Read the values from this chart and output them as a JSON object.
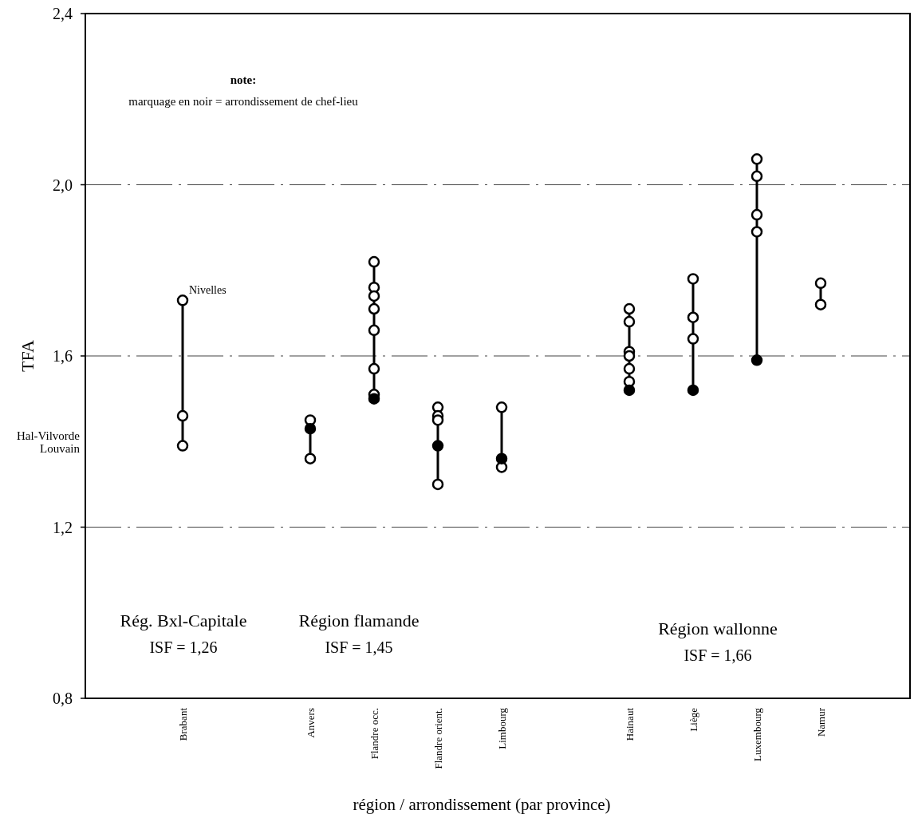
{
  "chart_data": {
    "type": "scatter",
    "xlabel": "région / arrondissement (par province)",
    "ylabel": "TFA",
    "categories": [
      "Brabant",
      null,
      "Anvers",
      "Flandre occ.",
      "Flandre orient.",
      "Limbourg",
      null,
      "Hainaut",
      "Liège",
      "Luxembourg",
      "Namur"
    ],
    "ylim": [
      0.8,
      2.4
    ],
    "yticks": [
      {
        "value": 0.8,
        "label": "0,8"
      },
      {
        "value": 1.2,
        "label": "1,2"
      },
      {
        "value": 1.6,
        "label": "1,6"
      },
      {
        "value": 2.0,
        "label": "2,0"
      },
      {
        "value": 2.4,
        "label": "2,4"
      }
    ],
    "grid": "y",
    "marker": "circle",
    "series": [
      {
        "type": "line",
        "color": "#000000",
        "x": [
          "Brabant",
          "Brabant"
        ],
        "values": [
          1.39,
          1.73
        ],
        "marker": "none"
      },
      {
        "type": "line",
        "color": "#000000",
        "x": [
          "Anvers",
          "Anvers"
        ],
        "values": [
          1.36,
          1.45
        ],
        "marker": "none"
      },
      {
        "type": "line",
        "color": "#000000",
        "x": [
          "Flandre occ.",
          "Flandre occ."
        ],
        "values": [
          1.5,
          1.82
        ],
        "marker": "none"
      },
      {
        "type": "line",
        "color": "#000000",
        "x": [
          "Flandre orient.",
          "Flandre orient."
        ],
        "values": [
          1.3,
          1.48
        ],
        "marker": "none"
      },
      {
        "type": "line",
        "color": "#000000",
        "x": [
          "Limbourg",
          "Limbourg"
        ],
        "values": [
          1.34,
          1.48
        ],
        "marker": "none"
      },
      {
        "type": "line",
        "color": "#000000",
        "x": [
          "Hainaut",
          "Hainaut"
        ],
        "values": [
          1.52,
          1.71
        ],
        "marker": "none"
      },
      {
        "type": "line",
        "color": "#000000",
        "x": [
          "Liège",
          "Liège"
        ],
        "values": [
          1.52,
          1.78
        ],
        "marker": "none"
      },
      {
        "type": "line",
        "color": "#000000",
        "x": [
          "Luxembourg",
          "Luxembourg"
        ],
        "values": [
          1.59,
          2.06
        ],
        "marker": "none"
      },
      {
        "type": "line",
        "color": "#000000",
        "x": [
          "Namur",
          "Namur"
        ],
        "values": [
          1.72,
          1.77
        ],
        "marker": "none"
      },
      {
        "color": "#ffffff",
        "x": [
          "Brabant",
          "Brabant",
          "Brabant",
          "Anvers",
          "Anvers",
          "Flandre occ.",
          "Flandre occ.",
          "Flandre occ.",
          "Flandre occ.",
          "Flandre occ.",
          "Flandre occ.",
          "Flandre occ.",
          "Flandre orient.",
          "Flandre orient.",
          "Flandre orient.",
          "Flandre orient.",
          "Limbourg",
          "Limbourg",
          "Hainaut",
          "Hainaut",
          "Hainaut",
          "Hainaut",
          "Hainaut",
          "Hainaut",
          "Liège",
          "Liège",
          "Liège",
          "Luxembourg",
          "Luxembourg",
          "Luxembourg",
          "Luxembourg",
          "Namur",
          "Namur"
        ],
        "values": [
          1.73,
          1.46,
          1.39,
          1.45,
          1.36,
          1.82,
          1.76,
          1.74,
          1.71,
          1.66,
          1.57,
          1.51,
          1.48,
          1.46,
          1.45,
          1.3,
          1.48,
          1.34,
          1.71,
          1.68,
          1.61,
          1.6,
          1.57,
          1.54,
          1.78,
          1.69,
          1.64,
          2.06,
          2.02,
          1.93,
          1.89,
          1.77,
          1.72
        ]
      },
      {
        "color": "#000000",
        "x": [
          "Anvers",
          "Flandre occ.",
          "Flandre orient.",
          "Limbourg",
          "Hainaut",
          "Liège",
          "Luxembourg"
        ],
        "values": [
          1.43,
          1.5,
          1.39,
          1.36,
          1.52,
          1.52,
          1.59
        ]
      }
    ],
    "annotations": [
      "note:",
      "marquage en noir = arrondissement de chef-lieu",
      {
        "text": "Nivelles",
        "x": "Brabant",
        "y": 1.73
      },
      "Hal-Vilvorde",
      "Louvain",
      "Rég. Bxl-Capitale",
      "ISF = 1,26",
      "Région flamande",
      "ISF = 1,45",
      "Région wallonne",
      "ISF = 1,66"
    ]
  }
}
